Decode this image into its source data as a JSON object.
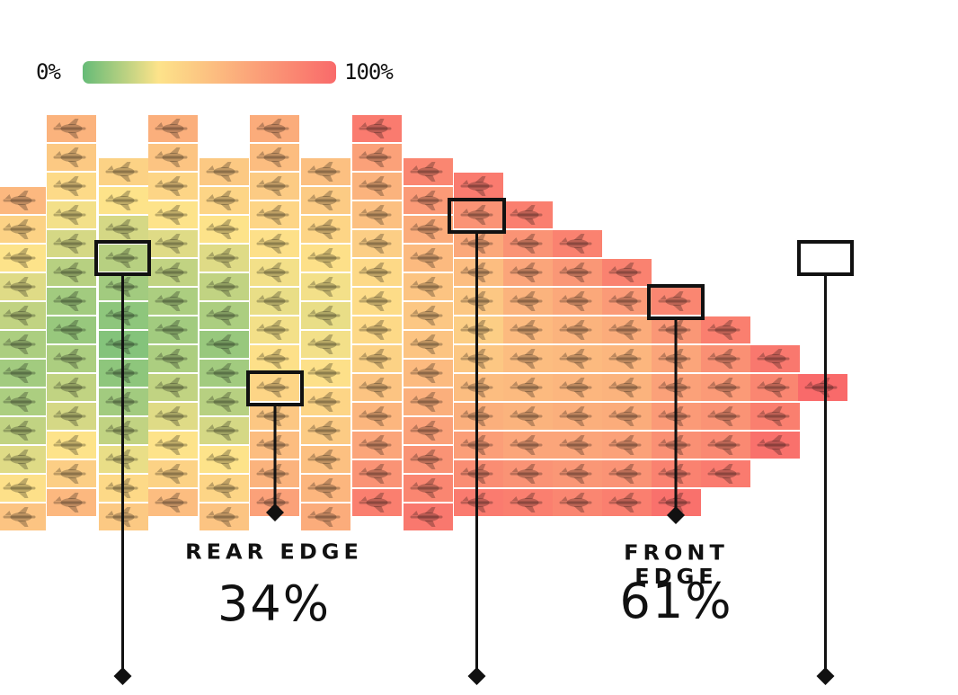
{
  "legend": {
    "min_label": "0%",
    "max_label": "100%",
    "colors": [
      "#66bb77",
      "#fde38a",
      "#f96a6a"
    ]
  },
  "callouts": {
    "rear": {
      "title": "REAR EDGE",
      "value": "34%"
    },
    "front": {
      "title": "FRONT EDGE",
      "value": "61%"
    }
  },
  "colors": {
    "frame": "#111111",
    "plane_icon": "#00000040"
  },
  "chart_data": {
    "type": "heatmap",
    "description_scale": "percent 0-100, green (0%) to yellow to red (100%)",
    "icon": "airplane-icon",
    "columns": [
      {
        "rows_top": 2,
        "values": [
          55,
          40,
          30,
          24,
          18,
          14,
          12,
          14,
          18,
          24,
          32,
          48
        ]
      },
      {
        "rows_top": 0,
        "values": [
          58,
          45,
          35,
          28,
          22,
          16,
          12,
          10,
          14,
          18,
          22,
          30,
          42,
          55
        ]
      },
      {
        "rows_top": 1,
        "values": [
          40,
          30,
          22,
          16,
          12,
          8,
          6,
          8,
          12,
          18,
          26,
          36,
          45
        ]
      },
      {
        "rows_top": 0,
        "values": [
          60,
          48,
          38,
          30,
          24,
          18,
          14,
          12,
          14,
          18,
          24,
          30,
          40,
          52
        ]
      },
      {
        "rows_top": 1,
        "values": [
          45,
          38,
          30,
          24,
          18,
          14,
          10,
          12,
          16,
          22,
          30,
          38,
          48
        ]
      },
      {
        "rows_top": 0,
        "values": [
          62,
          52,
          44,
          38,
          32,
          28,
          26,
          28,
          32,
          38,
          46,
          52,
          58,
          68
        ]
      },
      {
        "rows_top": 1,
        "values": [
          50,
          44,
          38,
          32,
          28,
          26,
          28,
          32,
          38,
          44,
          50,
          56,
          62
        ]
      },
      {
        "rows_top": 0,
        "values": [
          90,
          68,
          58,
          50,
          42,
          36,
          34,
          36,
          40,
          48,
          56,
          66,
          76,
          88
        ]
      },
      {
        "rows_top": 1,
        "values": [
          84,
          72,
          62,
          54,
          48,
          46,
          48,
          54,
          60,
          68,
          76,
          84,
          92
        ]
      },
      {
        "rows_top": 2,
        "values": [
          90,
          76,
          64,
          52,
          46,
          42,
          46,
          52,
          60,
          70,
          80,
          90
        ]
      },
      {
        "rows_top": 3,
        "values": [
          88,
          76,
          66,
          58,
          54,
          52,
          54,
          58,
          66,
          76,
          88
        ]
      },
      {
        "rows_top": 4,
        "values": [
          86,
          74,
          64,
          58,
          54,
          56,
          60,
          66,
          74,
          84
        ]
      },
      {
        "rows_top": 5,
        "values": [
          86,
          72,
          62,
          56,
          58,
          62,
          68,
          76,
          88
        ]
      },
      {
        "rows_top": 6,
        "values": [
          84,
          74,
          66,
          68,
          72,
          78,
          86,
          96
        ]
      },
      {
        "rows_top": 7,
        "values": [
          88,
          78,
          72,
          76,
          82,
          90
        ]
      },
      {
        "rows_top": 8,
        "values": [
          92,
          84,
          88,
          96
        ]
      },
      {
        "rows_top": 9,
        "values": [
          100
        ]
      }
    ],
    "highlighted_cells": [
      {
        "column": 2,
        "row": 5
      },
      {
        "column": 5,
        "row": 12
      },
      {
        "column": 9,
        "row": 3
      },
      {
        "column": 13,
        "row": 6
      },
      {
        "column": 16,
        "row": 9
      }
    ]
  }
}
